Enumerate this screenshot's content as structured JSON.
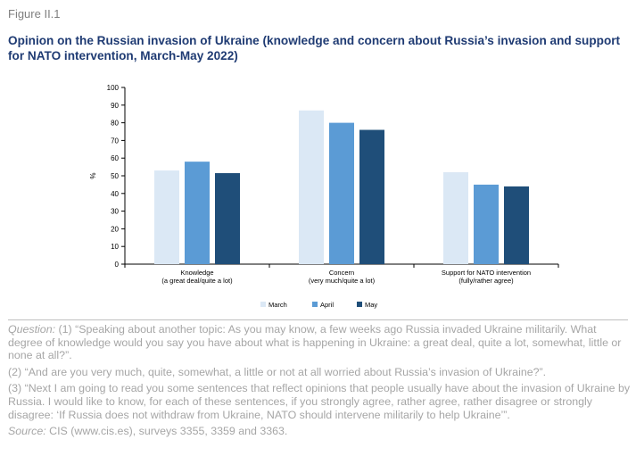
{
  "figure_label": "Figure II.1",
  "title": "Opinion on the Russian invasion of Ukraine (knowledge and concern about Russia’s invasion and support for NATO intervention, March-May 2022)",
  "chart_data": {
    "type": "bar",
    "ylabel": "%",
    "ylim": [
      0,
      100
    ],
    "yticks": [
      0,
      10,
      20,
      30,
      40,
      50,
      60,
      70,
      80,
      90,
      100
    ],
    "categories": [
      [
        "Knowledge",
        "(a great deal/quite a lot)"
      ],
      [
        "Concern",
        "(very much/quite a lot)"
      ],
      [
        "Support for NATO intervention",
        "(fully/rather agree)"
      ]
    ],
    "series": [
      {
        "name": "March",
        "values": [
          53,
          87,
          52
        ],
        "color": "#dbe8f5"
      },
      {
        "name": "April",
        "values": [
          58,
          80,
          45
        ],
        "color": "#5b9bd5"
      },
      {
        "name": "May",
        "values": [
          51.5,
          76,
          44
        ],
        "color": "#1f4e79"
      }
    ],
    "legend": "bottom",
    "grid": false
  },
  "notes": {
    "q1_label": "Question:",
    "q1_text": " (1) “Speaking about another topic: As you may know, a few weeks ago Russia invaded Ukraine militarily. What degree of knowledge would you say you have about what is happening in Ukraine: a great deal, quite a lot, somewhat, little or none at all?”.",
    "q2_text": "(2) “And are you very much, quite, somewhat, a little or not at all worried about Russia’s invasion of Ukraine?”.",
    "q3_text": "(3) “Next I am going to read you some sentences that reflect opinions that people usually have about the invasion of Ukraine by Russia. I would like to know, for each of these sentences, if you strongly agree, rather agree, rather disagree or strongly disagree: ‘If Russia does not withdraw from Ukraine, NATO should intervene militarily to help Ukraine’”.",
    "source_label": "Source:",
    "source_text": " CIS (www.cis.es), surveys 3355, 3359 and 3363."
  }
}
